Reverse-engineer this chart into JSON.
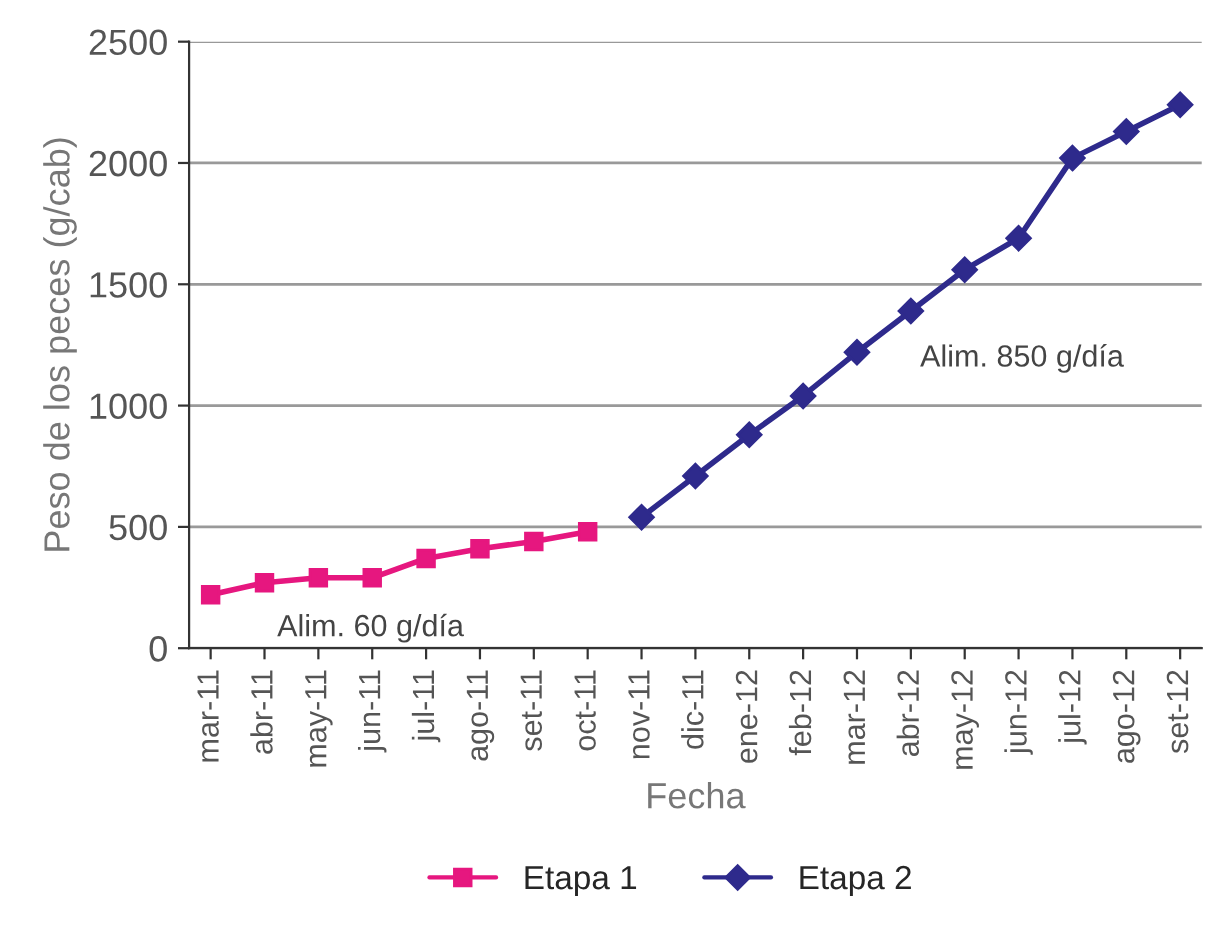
{
  "chart_data": {
    "type": "line",
    "xlabel": "Fecha",
    "ylabel": "Peso de los peces (g/cab)",
    "categories": [
      "mar-11",
      "abr-11",
      "may-11",
      "jun-11",
      "jul-11",
      "ago-11",
      "set-11",
      "oct-11",
      "nov-11",
      "dic-11",
      "ene-12",
      "feb-12",
      "mar-12",
      "abr-12",
      "may-12",
      "jun-12",
      "jul-12",
      "ago-12",
      "set-12"
    ],
    "series": [
      {
        "name": "Etapa 1",
        "color": "#e6177f",
        "marker": "square",
        "values": [
          220,
          270,
          290,
          290,
          370,
          410,
          440,
          480,
          null,
          null,
          null,
          null,
          null,
          null,
          null,
          null,
          null,
          null,
          null
        ]
      },
      {
        "name": "Etapa 2",
        "color": "#2e2a8c",
        "marker": "diamond",
        "values": [
          null,
          null,
          null,
          null,
          null,
          null,
          null,
          null,
          540,
          710,
          880,
          1040,
          1220,
          1390,
          1560,
          1690,
          2020,
          2130,
          2240
        ]
      }
    ],
    "annotations": [
      "Alim. 60 g/día",
      "Alim. 850 g/día"
    ],
    "ylim": [
      0,
      2500
    ],
    "yticks": [
      0,
      500,
      1000,
      1500,
      2000,
      2500
    ],
    "grid": "y",
    "legend": "bottom"
  }
}
